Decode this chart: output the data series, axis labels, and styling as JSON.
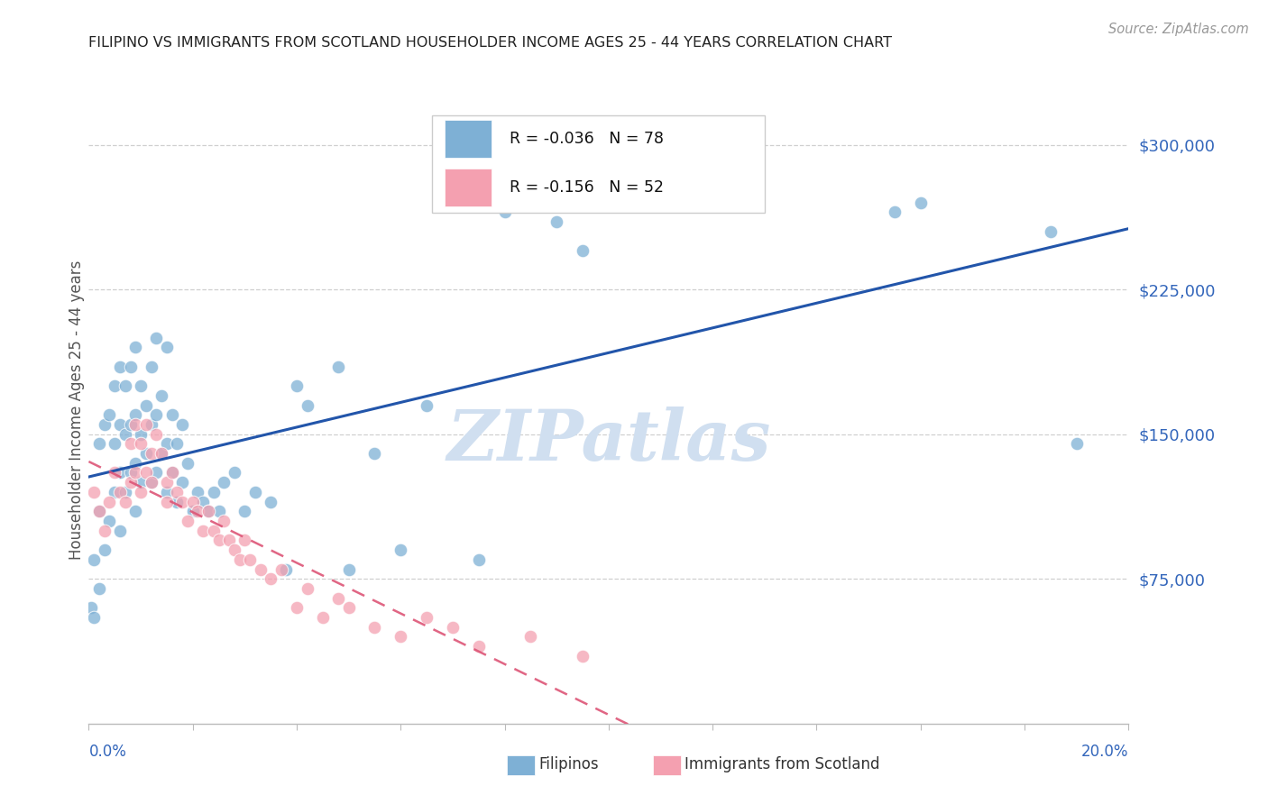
{
  "title": "FILIPINO VS IMMIGRANTS FROM SCOTLAND HOUSEHOLDER INCOME AGES 25 - 44 YEARS CORRELATION CHART",
  "source": "Source: ZipAtlas.com",
  "ylabel": "Householder Income Ages 25 - 44 years",
  "ytick_labels": [
    "$75,000",
    "$150,000",
    "$225,000",
    "$300,000"
  ],
  "ytick_values": [
    75000,
    150000,
    225000,
    300000
  ],
  "legend1_label": "Filipinos",
  "legend2_label": "Immigrants from Scotland",
  "R1": -0.036,
  "N1": 78,
  "R2": -0.156,
  "N2": 52,
  "blue_color": "#7EB0D5",
  "pink_color": "#F4A0B0",
  "blue_line_color": "#2255AA",
  "pink_line_color": "#DD5577",
  "axis_label_color": "#3366BB",
  "watermark_color": "#D0DFF0",
  "grid_color": "#BBBBBB",
  "xlim": [
    0.0,
    0.2
  ],
  "ylim": [
    0,
    325000
  ],
  "filipinos_x": [
    0.0005,
    0.001,
    0.001,
    0.002,
    0.002,
    0.002,
    0.003,
    0.003,
    0.004,
    0.004,
    0.005,
    0.005,
    0.005,
    0.006,
    0.006,
    0.006,
    0.006,
    0.007,
    0.007,
    0.007,
    0.008,
    0.008,
    0.008,
    0.009,
    0.009,
    0.009,
    0.009,
    0.01,
    0.01,
    0.01,
    0.011,
    0.011,
    0.012,
    0.012,
    0.012,
    0.013,
    0.013,
    0.013,
    0.014,
    0.014,
    0.015,
    0.015,
    0.015,
    0.016,
    0.016,
    0.017,
    0.017,
    0.018,
    0.018,
    0.019,
    0.02,
    0.021,
    0.022,
    0.023,
    0.024,
    0.025,
    0.026,
    0.028,
    0.03,
    0.032,
    0.035,
    0.038,
    0.04,
    0.042,
    0.048,
    0.05,
    0.055,
    0.06,
    0.065,
    0.075,
    0.08,
    0.085,
    0.09,
    0.095,
    0.155,
    0.16,
    0.185,
    0.19
  ],
  "filipinos_y": [
    60000,
    55000,
    85000,
    70000,
    110000,
    145000,
    90000,
    155000,
    105000,
    160000,
    120000,
    145000,
    175000,
    100000,
    130000,
    155000,
    185000,
    120000,
    150000,
    175000,
    130000,
    155000,
    185000,
    110000,
    135000,
    160000,
    195000,
    125000,
    150000,
    175000,
    140000,
    165000,
    125000,
    155000,
    185000,
    130000,
    160000,
    200000,
    140000,
    170000,
    120000,
    145000,
    195000,
    130000,
    160000,
    115000,
    145000,
    125000,
    155000,
    135000,
    110000,
    120000,
    115000,
    110000,
    120000,
    110000,
    125000,
    130000,
    110000,
    120000,
    115000,
    80000,
    175000,
    165000,
    185000,
    80000,
    140000,
    90000,
    165000,
    85000,
    265000,
    270000,
    260000,
    245000,
    265000,
    270000,
    255000,
    145000
  ],
  "scotland_x": [
    0.001,
    0.002,
    0.003,
    0.004,
    0.005,
    0.006,
    0.007,
    0.008,
    0.008,
    0.009,
    0.009,
    0.01,
    0.01,
    0.011,
    0.011,
    0.012,
    0.012,
    0.013,
    0.014,
    0.015,
    0.015,
    0.016,
    0.017,
    0.018,
    0.019,
    0.02,
    0.021,
    0.022,
    0.023,
    0.024,
    0.025,
    0.026,
    0.027,
    0.028,
    0.029,
    0.03,
    0.031,
    0.033,
    0.035,
    0.037,
    0.04,
    0.042,
    0.045,
    0.048,
    0.05,
    0.055,
    0.06,
    0.065,
    0.07,
    0.075,
    0.085,
    0.095
  ],
  "scotland_y": [
    120000,
    110000,
    100000,
    115000,
    130000,
    120000,
    115000,
    125000,
    145000,
    130000,
    155000,
    120000,
    145000,
    130000,
    155000,
    125000,
    140000,
    150000,
    140000,
    125000,
    115000,
    130000,
    120000,
    115000,
    105000,
    115000,
    110000,
    100000,
    110000,
    100000,
    95000,
    105000,
    95000,
    90000,
    85000,
    95000,
    85000,
    80000,
    75000,
    80000,
    60000,
    70000,
    55000,
    65000,
    60000,
    50000,
    45000,
    55000,
    50000,
    40000,
    45000,
    35000
  ]
}
